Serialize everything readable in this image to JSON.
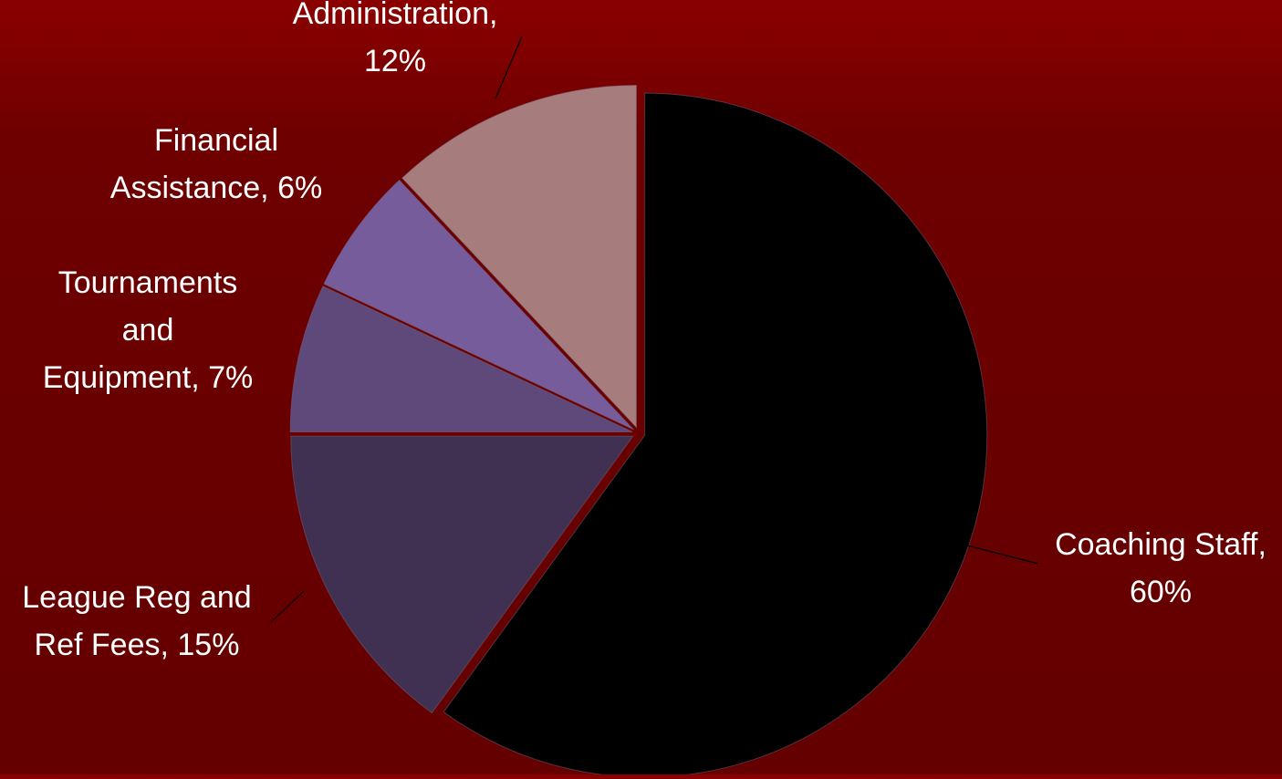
{
  "chart_data": {
    "type": "pie",
    "title": "",
    "start_angle_deg": 0,
    "direction": "clockwise",
    "slices": [
      {
        "category": "Coaching Staff",
        "value": 60,
        "label_lines": [
          "Coaching Staff,",
          "60%"
        ],
        "color": "#000000"
      },
      {
        "category": "League Reg and Ref Fees",
        "value": 15,
        "label_lines": [
          "League Reg and",
          "Ref Fees, 15%"
        ],
        "color": "#403152"
      },
      {
        "category": "Tournaments and Equipment",
        "value": 7,
        "label_lines": [
          "Tournaments",
          "and",
          "Equipment, 7%"
        ],
        "color": "#5f497a"
      },
      {
        "category": "Financial Assistance",
        "value": 6,
        "label_lines": [
          "Financial",
          "Assistance, 6%"
        ],
        "color": "#765c9a"
      },
      {
        "category": "Administration",
        "value": 12,
        "label_lines": [
          "Administration,",
          "12%"
        ],
        "color": "#a67c7c"
      }
    ],
    "legend": "none",
    "data_labels": "outside with leader lines"
  }
}
